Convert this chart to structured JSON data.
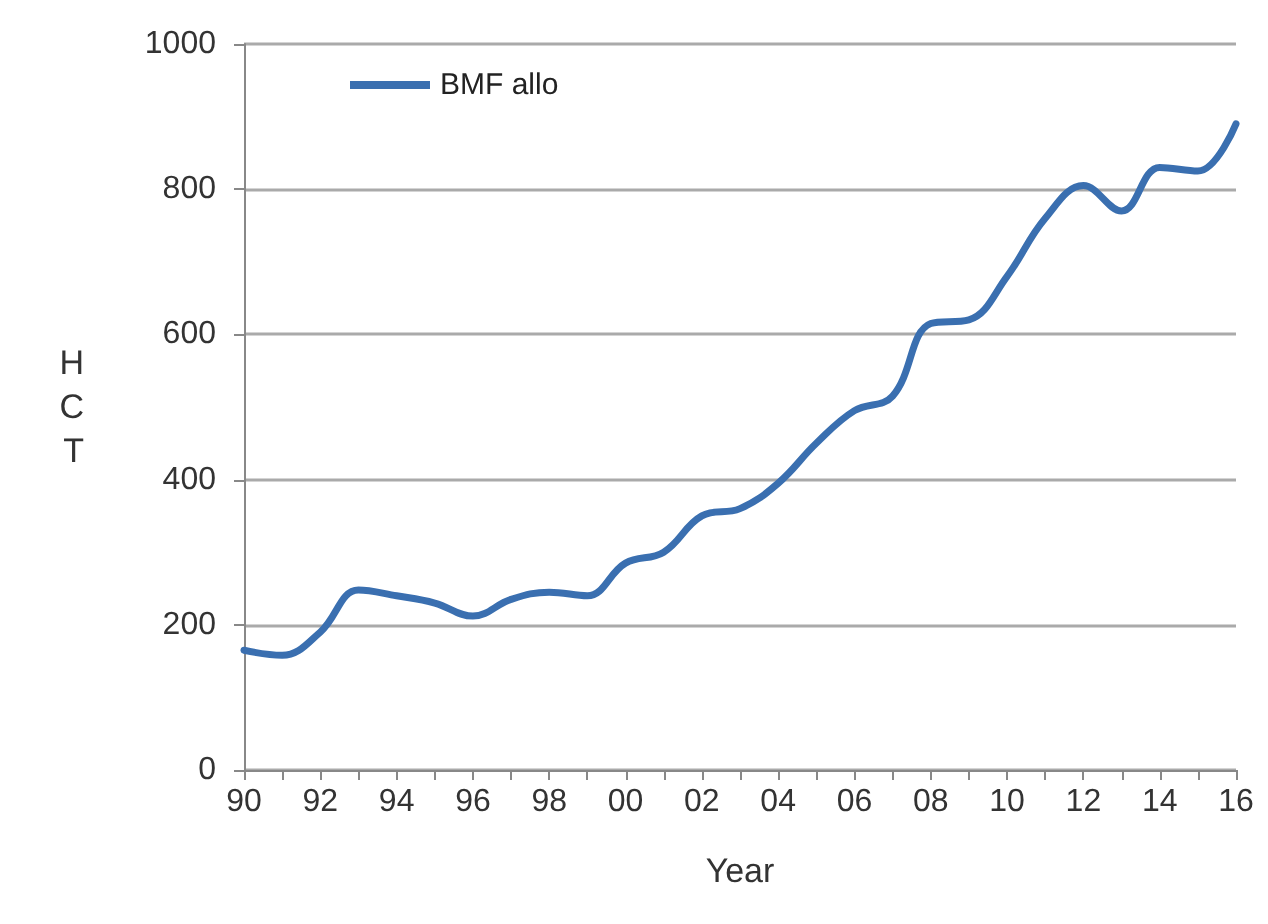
{
  "chart_data": {
    "type": "line",
    "xlabel": "Year",
    "ylabel": "H\nC\nT",
    "categories": [
      "90",
      null,
      "92",
      null,
      "94",
      null,
      "96",
      null,
      "98",
      null,
      "00",
      null,
      "02",
      null,
      "04",
      null,
      "06",
      null,
      "08",
      null,
      "10",
      null,
      "12",
      null,
      "14",
      null,
      "16"
    ],
    "series": [
      {
        "name": "BMF allo",
        "color": "#3a6fb0",
        "values": [
          165,
          158,
          190,
          248,
          240,
          230,
          212,
          235,
          245,
          240,
          285,
          300,
          350,
          360,
          395,
          450,
          495,
          515,
          615,
          620,
          680,
          760,
          805,
          770,
          830,
          825,
          890
        ]
      }
    ],
    "ylim": [
      0,
      1000
    ],
    "yticks": [
      0,
      200,
      400,
      600,
      800,
      1000
    ],
    "grid": "y",
    "legend": "top left",
    "marker": "none",
    "line_style": "solid"
  }
}
